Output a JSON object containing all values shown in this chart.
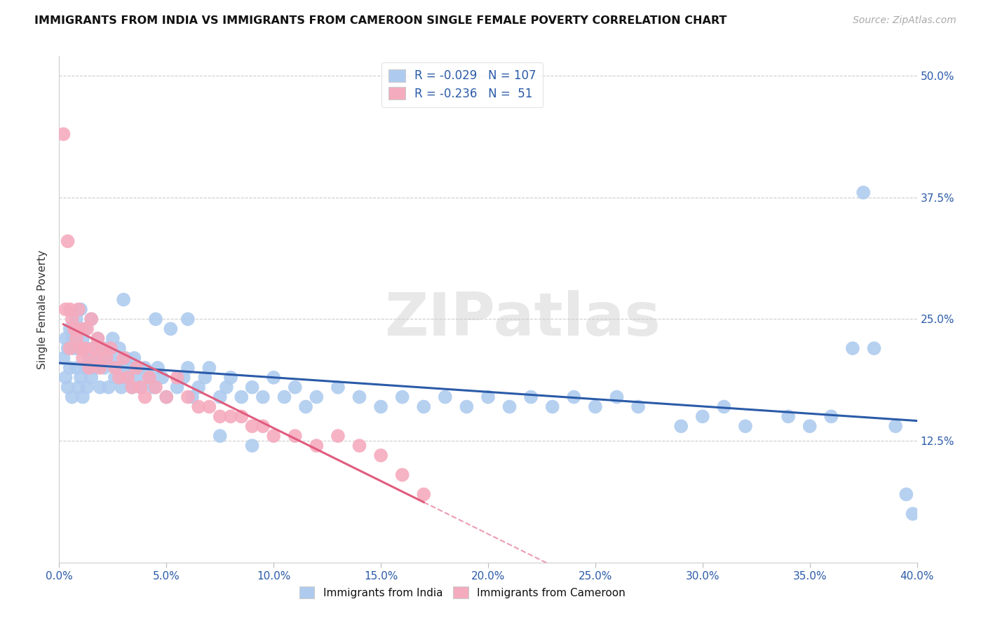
{
  "title": "IMMIGRANTS FROM INDIA VS IMMIGRANTS FROM CAMEROON SINGLE FEMALE POVERTY CORRELATION CHART",
  "source": "Source: ZipAtlas.com",
  "ylabel": "Single Female Poverty",
  "y_ticks": [
    "12.5%",
    "25.0%",
    "37.5%",
    "50.0%"
  ],
  "y_tick_vals": [
    0.125,
    0.25,
    0.375,
    0.5
  ],
  "legend_india": "Immigrants from India",
  "legend_cameroon": "Immigrants from Cameroon",
  "R_india": -0.029,
  "N_india": 107,
  "R_cameroon": -0.236,
  "N_cameroon": 51,
  "india_color": "#AECBEF",
  "cameroon_color": "#F5ABBE",
  "india_line_color": "#2B5BA8",
  "cameroon_line_color": "#E05C7E",
  "background_color": "#FFFFFF",
  "xlim": [
    0.0,
    0.4
  ],
  "ylim": [
    0.0,
    0.52
  ],
  "india_x": [
    0.002,
    0.003,
    0.003,
    0.004,
    0.004,
    0.005,
    0.005,
    0.006,
    0.006,
    0.007,
    0.008,
    0.008,
    0.009,
    0.009,
    0.01,
    0.01,
    0.01,
    0.011,
    0.011,
    0.012,
    0.012,
    0.013,
    0.013,
    0.014,
    0.015,
    0.015,
    0.016,
    0.017,
    0.018,
    0.019,
    0.02,
    0.021,
    0.022,
    0.023,
    0.024,
    0.025,
    0.026,
    0.027,
    0.028,
    0.029,
    0.03,
    0.031,
    0.032,
    0.033,
    0.034,
    0.035,
    0.036,
    0.037,
    0.038,
    0.04,
    0.042,
    0.044,
    0.046,
    0.048,
    0.05,
    0.052,
    0.055,
    0.058,
    0.06,
    0.062,
    0.065,
    0.068,
    0.07,
    0.075,
    0.078,
    0.08,
    0.085,
    0.09,
    0.095,
    0.1,
    0.105,
    0.11,
    0.115,
    0.12,
    0.13,
    0.14,
    0.15,
    0.16,
    0.17,
    0.18,
    0.19,
    0.2,
    0.21,
    0.22,
    0.23,
    0.24,
    0.25,
    0.26,
    0.27,
    0.29,
    0.3,
    0.31,
    0.32,
    0.34,
    0.35,
    0.36,
    0.37,
    0.375,
    0.38,
    0.39,
    0.395,
    0.398,
    0.03,
    0.045,
    0.06,
    0.075,
    0.09
  ],
  "india_y": [
    0.21,
    0.23,
    0.19,
    0.22,
    0.18,
    0.24,
    0.2,
    0.23,
    0.17,
    0.22,
    0.25,
    0.2,
    0.22,
    0.18,
    0.26,
    0.22,
    0.19,
    0.23,
    0.17,
    0.24,
    0.2,
    0.22,
    0.18,
    0.21,
    0.25,
    0.19,
    0.22,
    0.2,
    0.23,
    0.18,
    0.21,
    0.2,
    0.22,
    0.18,
    0.21,
    0.23,
    0.19,
    0.2,
    0.22,
    0.18,
    0.2,
    0.21,
    0.19,
    0.2,
    0.18,
    0.21,
    0.19,
    0.2,
    0.18,
    0.2,
    0.19,
    0.18,
    0.2,
    0.19,
    0.17,
    0.24,
    0.18,
    0.19,
    0.2,
    0.17,
    0.18,
    0.19,
    0.2,
    0.17,
    0.18,
    0.19,
    0.17,
    0.18,
    0.17,
    0.19,
    0.17,
    0.18,
    0.16,
    0.17,
    0.18,
    0.17,
    0.16,
    0.17,
    0.16,
    0.17,
    0.16,
    0.17,
    0.16,
    0.17,
    0.16,
    0.17,
    0.16,
    0.17,
    0.16,
    0.14,
    0.15,
    0.16,
    0.14,
    0.15,
    0.14,
    0.15,
    0.22,
    0.38,
    0.22,
    0.14,
    0.07,
    0.05,
    0.27,
    0.25,
    0.25,
    0.13,
    0.12
  ],
  "cameroon_x": [
    0.002,
    0.003,
    0.004,
    0.005,
    0.005,
    0.006,
    0.007,
    0.008,
    0.009,
    0.01,
    0.01,
    0.011,
    0.012,
    0.013,
    0.014,
    0.015,
    0.016,
    0.017,
    0.018,
    0.019,
    0.02,
    0.022,
    0.024,
    0.026,
    0.028,
    0.03,
    0.032,
    0.034,
    0.036,
    0.038,
    0.04,
    0.042,
    0.045,
    0.05,
    0.055,
    0.06,
    0.065,
    0.07,
    0.075,
    0.08,
    0.085,
    0.09,
    0.095,
    0.1,
    0.11,
    0.12,
    0.13,
    0.14,
    0.15,
    0.16,
    0.17
  ],
  "cameroon_y": [
    0.44,
    0.26,
    0.33,
    0.26,
    0.22,
    0.25,
    0.24,
    0.23,
    0.26,
    0.22,
    0.24,
    0.21,
    0.22,
    0.24,
    0.2,
    0.25,
    0.22,
    0.21,
    0.23,
    0.2,
    0.22,
    0.21,
    0.22,
    0.2,
    0.19,
    0.21,
    0.19,
    0.18,
    0.2,
    0.18,
    0.17,
    0.19,
    0.18,
    0.17,
    0.19,
    0.17,
    0.16,
    0.16,
    0.15,
    0.15,
    0.15,
    0.14,
    0.14,
    0.13,
    0.13,
    0.12,
    0.13,
    0.12,
    0.11,
    0.09,
    0.07
  ],
  "watermark_text": "ZIPatlas",
  "x_tick_positions": [
    0.0,
    0.05,
    0.1,
    0.15,
    0.2,
    0.25,
    0.3,
    0.35,
    0.4
  ],
  "x_tick_labels": [
    "0.0%",
    "5.0%",
    "10.0%",
    "15.0%",
    "20.0%",
    "25.0%",
    "30.0%",
    "35.0%",
    "40.0%"
  ]
}
